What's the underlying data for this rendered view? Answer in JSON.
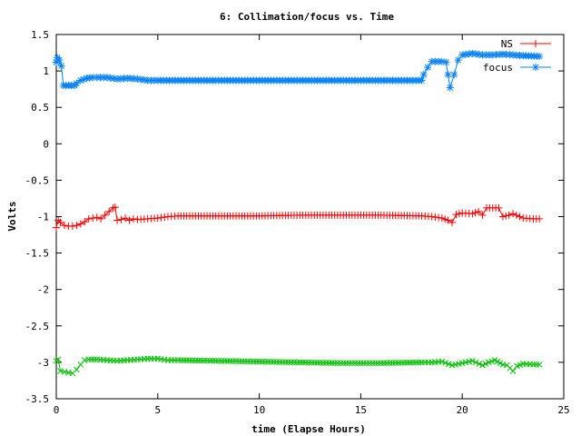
{
  "chart_data": {
    "type": "line",
    "title": "6: Collimation/focus vs. Time",
    "xlabel": "time (Elapse Hours)",
    "ylabel": "Volts",
    "xlim": [
      0,
      25
    ],
    "ylim": [
      -3.5,
      1.5
    ],
    "xticks": [
      0,
      5,
      10,
      15,
      20,
      25
    ],
    "yticks": [
      -3.5,
      -3,
      -2.5,
      -2,
      -1.5,
      -1,
      -0.5,
      0,
      0.5,
      1,
      1.5
    ],
    "grid": false,
    "legend_position": "top-right",
    "series": [
      {
        "name": "NS",
        "color": "#ff0000",
        "marker": "plus",
        "points": [
          [
            0,
            -1.15
          ],
          [
            0.1,
            -1.05
          ],
          [
            0.2,
            -1.08
          ],
          [
            0.4,
            -1.12
          ],
          [
            0.6,
            -1.13
          ],
          [
            0.8,
            -1.13
          ],
          [
            1.0,
            -1.12
          ],
          [
            1.2,
            -1.1
          ],
          [
            1.4,
            -1.07
          ],
          [
            1.6,
            -1.03
          ],
          [
            1.8,
            -1.02
          ],
          [
            2.0,
            -1.01
          ],
          [
            2.2,
            -1.03
          ],
          [
            2.4,
            -0.98
          ],
          [
            2.6,
            -0.93
          ],
          [
            2.8,
            -0.88
          ],
          [
            2.9,
            -0.87
          ],
          [
            3.0,
            -1.05
          ],
          [
            3.2,
            -1.04
          ],
          [
            3.4,
            -1.02
          ],
          [
            3.6,
            -1.05
          ],
          [
            3.8,
            -1.03
          ],
          [
            4.0,
            -1.04
          ],
          [
            4.5,
            -1.03
          ],
          [
            5.0,
            -1.02
          ],
          [
            5.5,
            -1.0
          ],
          [
            6.0,
            -0.99
          ],
          [
            8.0,
            -0.99
          ],
          [
            10.0,
            -0.99
          ],
          [
            12.0,
            -0.98
          ],
          [
            14.0,
            -0.98
          ],
          [
            16.0,
            -0.98
          ],
          [
            18.0,
            -0.99
          ],
          [
            18.5,
            -1.0
          ],
          [
            19.0,
            -1.02
          ],
          [
            19.3,
            -1.05
          ],
          [
            19.5,
            -1.08
          ],
          [
            19.7,
            -0.97
          ],
          [
            20.0,
            -0.95
          ],
          [
            20.5,
            -0.96
          ],
          [
            20.8,
            -0.93
          ],
          [
            21.0,
            -0.98
          ],
          [
            21.2,
            -0.88
          ],
          [
            21.5,
            -0.88
          ],
          [
            21.8,
            -0.88
          ],
          [
            22.0,
            -1.0
          ],
          [
            22.3,
            -0.98
          ],
          [
            22.5,
            -0.96
          ],
          [
            23.0,
            -1.02
          ],
          [
            23.5,
            -1.03
          ],
          [
            23.8,
            -1.03
          ]
        ]
      },
      {
        "name": "",
        "color": "#00c000",
        "marker": "cross",
        "points": [
          [
            0,
            -2.98
          ],
          [
            0.1,
            -2.96
          ],
          [
            0.2,
            -3.12
          ],
          [
            0.4,
            -3.13
          ],
          [
            0.6,
            -3.14
          ],
          [
            0.8,
            -3.15
          ],
          [
            1.0,
            -3.1
          ],
          [
            1.2,
            -3.03
          ],
          [
            1.4,
            -2.97
          ],
          [
            1.6,
            -2.96
          ],
          [
            2.0,
            -2.96
          ],
          [
            2.5,
            -2.97
          ],
          [
            3.0,
            -2.98
          ],
          [
            3.5,
            -2.97
          ],
          [
            4.0,
            -2.96
          ],
          [
            4.5,
            -2.95
          ],
          [
            5.0,
            -2.95
          ],
          [
            5.5,
            -2.97
          ],
          [
            6.0,
            -2.97
          ],
          [
            8.0,
            -2.98
          ],
          [
            10.0,
            -2.99
          ],
          [
            12.0,
            -3.0
          ],
          [
            14.0,
            -3.01
          ],
          [
            16.0,
            -3.01
          ],
          [
            18.0,
            -3.0
          ],
          [
            18.5,
            -3.0
          ],
          [
            19.0,
            -2.99
          ],
          [
            19.5,
            -3.04
          ],
          [
            20.0,
            -3.01
          ],
          [
            20.5,
            -2.98
          ],
          [
            21.0,
            -3.04
          ],
          [
            21.3,
            -3.0
          ],
          [
            21.6,
            -2.97
          ],
          [
            22.0,
            -3.03
          ],
          [
            22.2,
            -3.04
          ],
          [
            22.5,
            -3.12
          ],
          [
            22.7,
            -3.05
          ],
          [
            23.0,
            -3.02
          ],
          [
            23.5,
            -3.03
          ],
          [
            23.8,
            -3.03
          ]
        ]
      },
      {
        "name": "focus",
        "color": "#0080ff",
        "marker": "star",
        "points": [
          [
            0,
            1.12
          ],
          [
            0.05,
            1.18
          ],
          [
            0.15,
            1.15
          ],
          [
            0.25,
            1.07
          ],
          [
            0.35,
            0.8
          ],
          [
            0.6,
            0.8
          ],
          [
            0.9,
            0.8
          ],
          [
            1.0,
            0.83
          ],
          [
            1.2,
            0.87
          ],
          [
            1.5,
            0.9
          ],
          [
            1.8,
            0.91
          ],
          [
            2.0,
            0.91
          ],
          [
            2.5,
            0.91
          ],
          [
            3.0,
            0.89
          ],
          [
            3.5,
            0.9
          ],
          [
            4.0,
            0.89
          ],
          [
            4.5,
            0.87
          ],
          [
            5.0,
            0.87
          ],
          [
            6.0,
            0.87
          ],
          [
            8.0,
            0.87
          ],
          [
            10.0,
            0.87
          ],
          [
            12.0,
            0.87
          ],
          [
            14.0,
            0.87
          ],
          [
            16.0,
            0.87
          ],
          [
            18.0,
            0.87
          ],
          [
            18.1,
            0.95
          ],
          [
            18.3,
            1.05
          ],
          [
            18.5,
            1.13
          ],
          [
            19.0,
            1.13
          ],
          [
            19.2,
            1.12
          ],
          [
            19.3,
            0.95
          ],
          [
            19.4,
            0.77
          ],
          [
            19.6,
            0.95
          ],
          [
            19.8,
            1.15
          ],
          [
            20.0,
            1.22
          ],
          [
            20.5,
            1.24
          ],
          [
            21.0,
            1.22
          ],
          [
            21.5,
            1.22
          ],
          [
            22.0,
            1.23
          ],
          [
            22.5,
            1.22
          ],
          [
            23.0,
            1.21
          ],
          [
            23.8,
            1.2
          ]
        ]
      }
    ]
  }
}
